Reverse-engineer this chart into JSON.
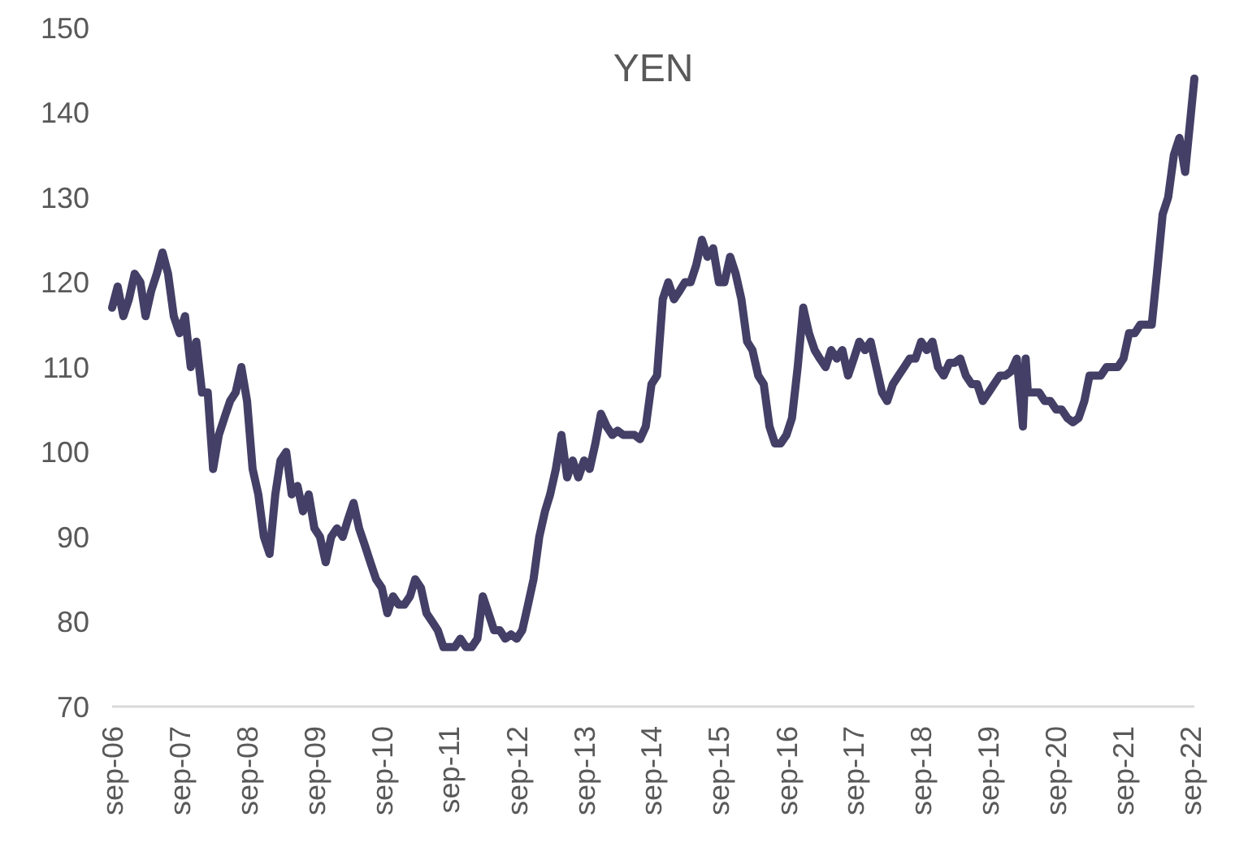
{
  "chart_data": {
    "type": "line",
    "title": "YEN",
    "x": [
      "2006-09",
      "2006-10",
      "2006-11",
      "2006-12",
      "2007-01",
      "2007-02",
      "2007-03",
      "2007-04",
      "2007-05",
      "2007-06",
      "2007-07",
      "2007-08",
      "2007-09",
      "2007-10",
      "2007-11",
      "2007-12",
      "2008-01",
      "2008-02",
      "2008-03",
      "2008-04",
      "2008-05",
      "2008-06",
      "2008-07",
      "2008-08",
      "2008-09",
      "2008-10",
      "2008-11",
      "2008-12",
      "2009-01",
      "2009-02",
      "2009-03",
      "2009-04",
      "2009-05",
      "2009-06",
      "2009-07",
      "2009-08",
      "2009-09",
      "2009-10",
      "2009-11",
      "2009-12",
      "2010-01",
      "2010-02",
      "2010-03",
      "2010-04",
      "2010-05",
      "2010-06",
      "2010-07",
      "2010-08",
      "2010-09",
      "2010-10",
      "2010-11",
      "2010-12",
      "2011-01",
      "2011-02",
      "2011-03",
      "2011-04",
      "2011-05",
      "2011-06",
      "2011-07",
      "2011-08",
      "2011-09",
      "2011-10",
      "2011-11",
      "2011-12",
      "2012-01",
      "2012-02",
      "2012-03",
      "2012-04",
      "2012-05",
      "2012-06",
      "2012-07",
      "2012-08",
      "2012-09",
      "2012-10",
      "2012-11",
      "2012-12",
      "2013-01",
      "2013-02",
      "2013-03",
      "2013-04",
      "2013-05",
      "2013-06",
      "2013-07",
      "2013-08",
      "2013-09",
      "2013-10",
      "2013-11",
      "2013-12",
      "2014-01",
      "2014-02",
      "2014-03",
      "2014-04",
      "2014-05",
      "2014-06",
      "2014-07",
      "2014-08",
      "2014-09",
      "2014-10",
      "2014-11",
      "2014-12",
      "2015-01",
      "2015-02",
      "2015-03",
      "2015-04",
      "2015-05",
      "2015-06",
      "2015-07",
      "2015-08",
      "2015-09",
      "2015-10",
      "2015-11",
      "2015-12",
      "2016-01",
      "2016-02",
      "2016-03",
      "2016-04",
      "2016-05",
      "2016-06",
      "2016-07",
      "2016-08",
      "2016-09",
      "2016-10",
      "2016-11",
      "2016-12",
      "2017-01",
      "2017-02",
      "2017-03",
      "2017-04",
      "2017-05",
      "2017-06",
      "2017-07",
      "2017-08",
      "2017-09",
      "2017-10",
      "2017-11",
      "2017-12",
      "2018-01",
      "2018-02",
      "2018-03",
      "2018-04",
      "2018-05",
      "2018-06",
      "2018-07",
      "2018-08",
      "2018-09",
      "2018-10",
      "2018-11",
      "2018-12",
      "2019-01",
      "2019-02",
      "2019-03",
      "2019-04",
      "2019-05",
      "2019-06",
      "2019-07",
      "2019-08",
      "2019-09",
      "2019-10",
      "2019-11",
      "2019-12",
      "2020-01",
      "2020-02",
      "2020-03-05",
      "2020-03-20",
      "2020-04",
      "2020-05",
      "2020-06",
      "2020-07",
      "2020-08",
      "2020-09",
      "2020-10",
      "2020-11",
      "2020-12",
      "2021-01",
      "2021-02",
      "2021-03",
      "2021-04",
      "2021-05",
      "2021-06",
      "2021-07",
      "2021-08",
      "2021-09",
      "2021-10",
      "2021-11",
      "2021-12",
      "2022-01",
      "2022-02",
      "2022-03",
      "2022-04",
      "2022-05",
      "2022-06",
      "2022-07",
      "2022-08",
      "2022-09-20"
    ],
    "series": [
      {
        "color": "#433f66",
        "values": [
          117,
          119.5,
          116,
          118,
          121,
          120,
          116,
          119,
          121,
          123.5,
          121,
          116,
          114,
          116,
          110,
          113,
          107,
          107,
          98,
          102,
          104,
          106,
          107,
          110,
          106,
          98,
          95,
          90,
          88,
          95,
          99,
          100,
          95,
          96,
          93,
          95,
          91,
          90,
          87,
          90,
          91,
          90,
          92,
          94,
          91,
          89,
          87,
          85,
          84,
          81,
          83,
          82,
          82,
          83,
          85,
          84,
          81,
          80,
          79,
          77,
          77,
          77,
          78,
          77,
          77,
          78,
          83,
          81,
          79,
          79,
          78,
          78.5,
          78,
          79,
          82,
          85,
          90,
          93,
          95,
          98,
          102,
          97,
          99,
          97,
          99,
          98,
          101,
          104.5,
          103,
          102,
          102.5,
          102,
          102,
          102,
          101.5,
          103,
          108,
          109,
          118,
          120,
          118,
          119,
          120,
          120,
          122,
          125,
          123,
          124,
          120,
          120,
          123,
          121,
          118,
          113,
          112,
          109,
          108,
          103,
          101,
          101,
          102,
          104,
          110,
          117,
          114,
          112,
          111,
          110,
          112,
          111,
          112,
          109,
          111,
          113,
          112,
          113,
          110,
          107,
          106,
          108,
          109,
          110,
          111,
          111,
          113,
          112,
          113,
          110,
          109,
          110.5,
          110.5,
          111,
          109,
          108,
          108,
          106,
          107,
          108,
          109,
          109,
          109.5,
          111,
          103,
          111,
          107,
          107,
          107,
          106,
          106,
          105,
          105,
          104,
          103.5,
          104,
          106,
          109,
          109,
          109,
          110,
          110,
          110,
          111,
          114,
          114,
          115,
          115,
          115,
          121,
          128,
          130,
          135,
          137,
          133,
          144
        ]
      }
    ],
    "xlim": [
      "2006-09",
      "2022-09-20"
    ],
    "xticks": [
      {
        "value": "2006-09",
        "label": "sep-06"
      },
      {
        "value": "2007-09",
        "label": "sep-07"
      },
      {
        "value": "2008-09",
        "label": "sep-08"
      },
      {
        "value": "2009-09",
        "label": "sep-09"
      },
      {
        "value": "2010-09",
        "label": "sep-10"
      },
      {
        "value": "2011-09",
        "label": "sep-11"
      },
      {
        "value": "2012-09",
        "label": "sep-12"
      },
      {
        "value": "2013-09",
        "label": "sep-13"
      },
      {
        "value": "2014-09",
        "label": "sep-14"
      },
      {
        "value": "2015-09",
        "label": "sep-15"
      },
      {
        "value": "2016-09",
        "label": "sep-16"
      },
      {
        "value": "2017-09",
        "label": "sep-17"
      },
      {
        "value": "2018-09",
        "label": "sep-18"
      },
      {
        "value": "2019-09",
        "label": "sep-19"
      },
      {
        "value": "2020-09",
        "label": "sep-20"
      },
      {
        "value": "2021-09",
        "label": "sep-21"
      },
      {
        "value": "2022-09",
        "label": "sep-22"
      }
    ],
    "ylim": [
      70,
      150
    ],
    "yticks": [
      70,
      80,
      90,
      100,
      110,
      120,
      130,
      140,
      150
    ],
    "grid": false,
    "line_style": "solid",
    "marker": "none"
  }
}
